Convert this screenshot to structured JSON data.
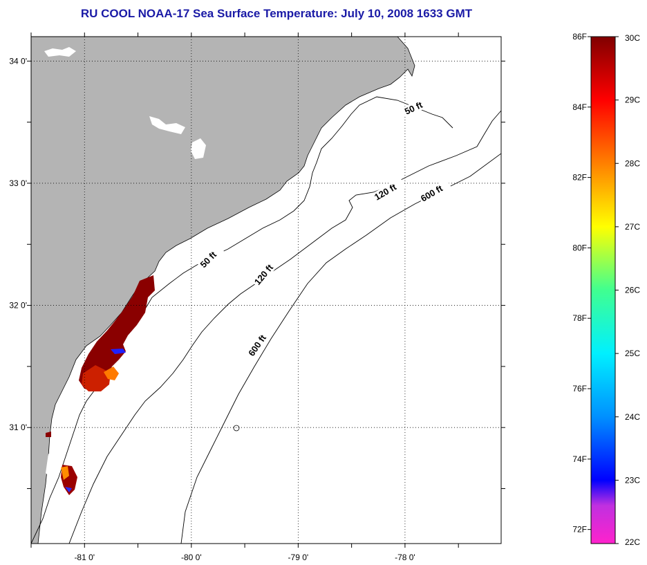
{
  "title": "RU COOL  NOAA-17  Sea Surface Temperature:  July 10, 2008 1633 GMT",
  "map": {
    "lon_range": [
      -81.5,
      -77.1
    ],
    "lat_range": [
      30.05,
      34.2
    ],
    "x_ticks": [
      {
        "value": -81,
        "label": "-81 0'"
      },
      {
        "value": -80,
        "label": "-80 0'"
      },
      {
        "value": -79,
        "label": "-79 0'"
      },
      {
        "value": -78,
        "label": "-78 0'"
      }
    ],
    "y_ticks": [
      {
        "value": 34,
        "label": "34 0'"
      },
      {
        "value": 33,
        "label": "33 0'"
      },
      {
        "value": 32,
        "label": "32 0'"
      },
      {
        "value": 31,
        "label": "31 0'"
      }
    ],
    "grid": true,
    "land_color": "#b4b4b4",
    "ocean_color": "#ffffff",
    "contour_labels": [
      {
        "text": "50 ft",
        "rotation": -25
      },
      {
        "text": "120 ft",
        "rotation": -30
      },
      {
        "text": "600 ft",
        "rotation": -30
      },
      {
        "text": "50 ft",
        "rotation": -45
      },
      {
        "text": "120 ft",
        "rotation": -50
      },
      {
        "text": "600 ft",
        "rotation": -55
      }
    ]
  },
  "colorbar": {
    "fahrenheit_labels": [
      "86F",
      "84F",
      "82F",
      "80F",
      "78F",
      "76F",
      "74F",
      "72F"
    ],
    "fahrenheit_values": [
      86,
      84,
      82,
      80,
      78,
      76,
      74,
      72
    ],
    "celsius_labels": [
      "30C",
      "29C",
      "28C",
      "27C",
      "26C",
      "25C",
      "24C",
      "23C",
      "22C"
    ],
    "celsius_values": [
      30,
      29,
      28,
      27,
      26,
      25,
      24,
      23,
      22
    ],
    "range_c": [
      22,
      30
    ],
    "colors": [
      {
        "c": 22.0,
        "color": "#ff22cc"
      },
      {
        "c": 22.6,
        "color": "#c030e0"
      },
      {
        "c": 23.0,
        "color": "#0000ff"
      },
      {
        "c": 24.0,
        "color": "#0090ff"
      },
      {
        "c": 25.0,
        "color": "#00f0ff"
      },
      {
        "c": 26.0,
        "color": "#40ff90"
      },
      {
        "c": 27.0,
        "color": "#ffff00"
      },
      {
        "c": 28.0,
        "color": "#ff8000"
      },
      {
        "c": 29.0,
        "color": "#ff0000"
      },
      {
        "c": 30.0,
        "color": "#800000"
      }
    ]
  }
}
